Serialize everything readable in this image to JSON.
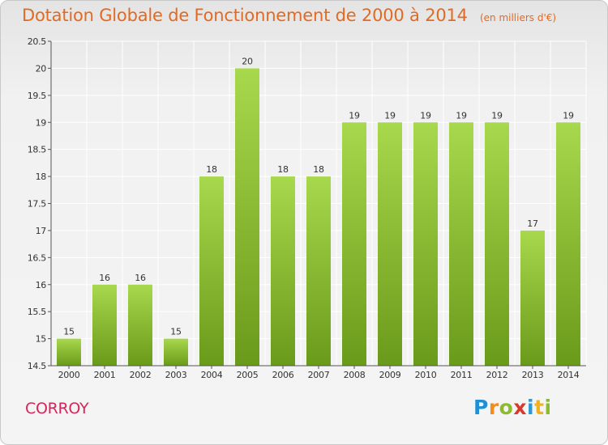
{
  "header": {
    "title": "Dotation Globale de Fonctionnement de 2000 à 2014",
    "unit": "(en milliers d'€)"
  },
  "footer": {
    "commune": "CORROY",
    "logo": "Proxiti",
    "logo_letters": [
      "P",
      "r",
      "o",
      "x",
      "i",
      "t",
      "i"
    ]
  },
  "colors": {
    "title": "#e26a22",
    "commune": "#d6265a",
    "bar_light": "#a8d84c",
    "bar_dark": "#6a9a1a",
    "grid": "#ffffff",
    "axis": "#555555"
  },
  "chart_data": {
    "type": "bar",
    "title": "Dotation Globale de Fonctionnement de 2000 à 2014",
    "subtitle": "(en milliers d'€)",
    "categories": [
      "2000",
      "2001",
      "2002",
      "2003",
      "2004",
      "2005",
      "2006",
      "2007",
      "2008",
      "2009",
      "2010",
      "2011",
      "2012",
      "2013",
      "2014"
    ],
    "values": [
      15,
      16,
      16,
      15,
      18,
      20,
      18,
      18,
      19,
      19,
      19,
      19,
      19,
      17,
      19
    ],
    "data_labels": [
      "15",
      "16",
      "16",
      "15",
      "18",
      "20",
      "18",
      "18",
      "19",
      "19",
      "19",
      "19",
      "19",
      "17",
      "19"
    ],
    "ylim": [
      14.5,
      20.5
    ],
    "yticks": [
      14.5,
      15,
      15.5,
      16,
      16.5,
      17,
      17.5,
      18,
      18.5,
      19,
      19.5,
      20,
      20.5
    ],
    "ytick_labels": [
      "14.5",
      "15",
      "15.5",
      "16",
      "16.5",
      "17",
      "17.5",
      "18",
      "18.5",
      "19",
      "19.5",
      "20",
      "20.5"
    ],
    "xlabel": "",
    "ylabel": "",
    "grid": true,
    "legend": "none"
  }
}
